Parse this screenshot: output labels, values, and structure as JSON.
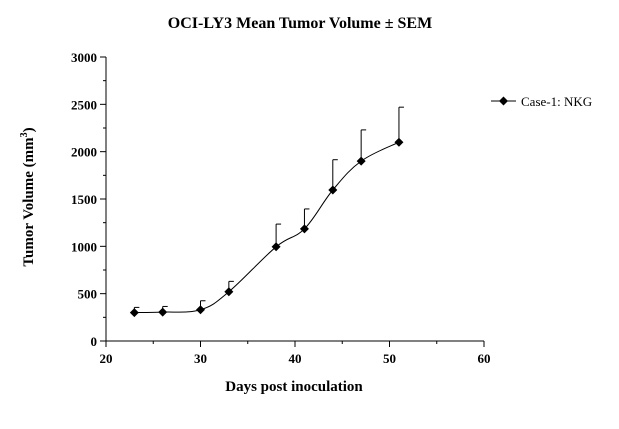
{
  "chart_data": {
    "type": "line",
    "title": "OCI-LY3 Mean Tumor Volume ± SEM",
    "xlabel": "Days post inoculation",
    "ylabel": "Tumor Volume (mm",
    "ylabel_superscript": "3",
    "ylabel_suffix": ")",
    "xlim": [
      20,
      60
    ],
    "ylim": [
      0,
      3000
    ],
    "xticks": [
      20,
      30,
      40,
      50,
      60
    ],
    "yticks": [
      0,
      500,
      1000,
      1500,
      2000,
      2500,
      3000
    ],
    "legend_position": "right",
    "grid": false,
    "error_bars": "SEM",
    "series": [
      {
        "name": "Case-1: NKG",
        "color": "#000000",
        "marker": "diamond",
        "x": [
          23,
          26,
          30,
          33,
          38,
          41,
          44,
          47,
          51
        ],
        "y": [
          300,
          305,
          330,
          520,
          995,
          1185,
          1595,
          1900,
          2100
        ],
        "error": [
          55,
          60,
          95,
          110,
          240,
          210,
          320,
          330,
          370
        ]
      }
    ]
  }
}
